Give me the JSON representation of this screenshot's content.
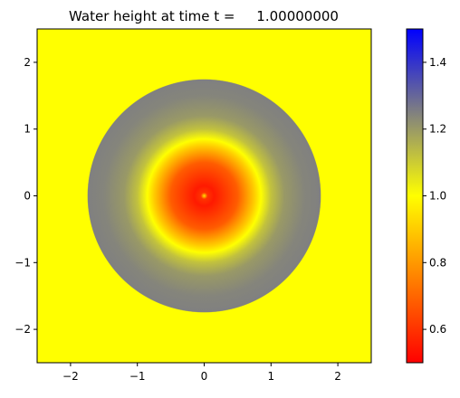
{
  "chart_data": {
    "type": "heatmap",
    "title": "Water height at time t =     1.00000000",
    "xlabel": "",
    "ylabel": "",
    "xlim": [
      -2.5,
      2.5
    ],
    "ylim": [
      -2.5,
      2.5
    ],
    "x_ticks": [
      -2,
      -1,
      0,
      1,
      2
    ],
    "y_ticks": [
      -2,
      -1,
      0,
      1,
      2
    ],
    "x_tick_labels": [
      "−2",
      "−1",
      "0",
      "1",
      "2"
    ],
    "y_tick_labels": [
      "−2",
      "−1",
      "0",
      "1",
      "2"
    ],
    "grid": false,
    "colorbar": {
      "vmin": 0.5,
      "vmax": 1.5,
      "ticks": [
        0.6,
        0.8,
        1.0,
        1.2,
        1.4
      ],
      "tick_labels": [
        "0.6",
        "0.8",
        "1.0",
        "1.2",
        "1.4"
      ],
      "colormap_stops": [
        {
          "value": 0.5,
          "color": "#ff0000"
        },
        {
          "value": 1.0,
          "color": "#ffff00"
        },
        {
          "value": 1.25,
          "color": "#808080"
        },
        {
          "value": 1.5,
          "color": "#0000ff"
        }
      ]
    },
    "field": {
      "background_value": 1.0,
      "wave_front_radius": 1.75,
      "radial_profile": [
        {
          "r": 0.0,
          "h": 0.95
        },
        {
          "r": 0.05,
          "h": 0.6
        },
        {
          "r": 0.15,
          "h": 0.55
        },
        {
          "r": 0.5,
          "h": 0.68
        },
        {
          "r": 0.75,
          "h": 0.9
        },
        {
          "r": 0.85,
          "h": 1.0
        },
        {
          "r": 1.0,
          "h": 1.12
        },
        {
          "r": 1.2,
          "h": 1.2
        },
        {
          "r": 1.5,
          "h": 1.24
        },
        {
          "r": 1.74,
          "h": 1.25
        },
        {
          "r": 1.76,
          "h": 1.0
        }
      ]
    }
  }
}
